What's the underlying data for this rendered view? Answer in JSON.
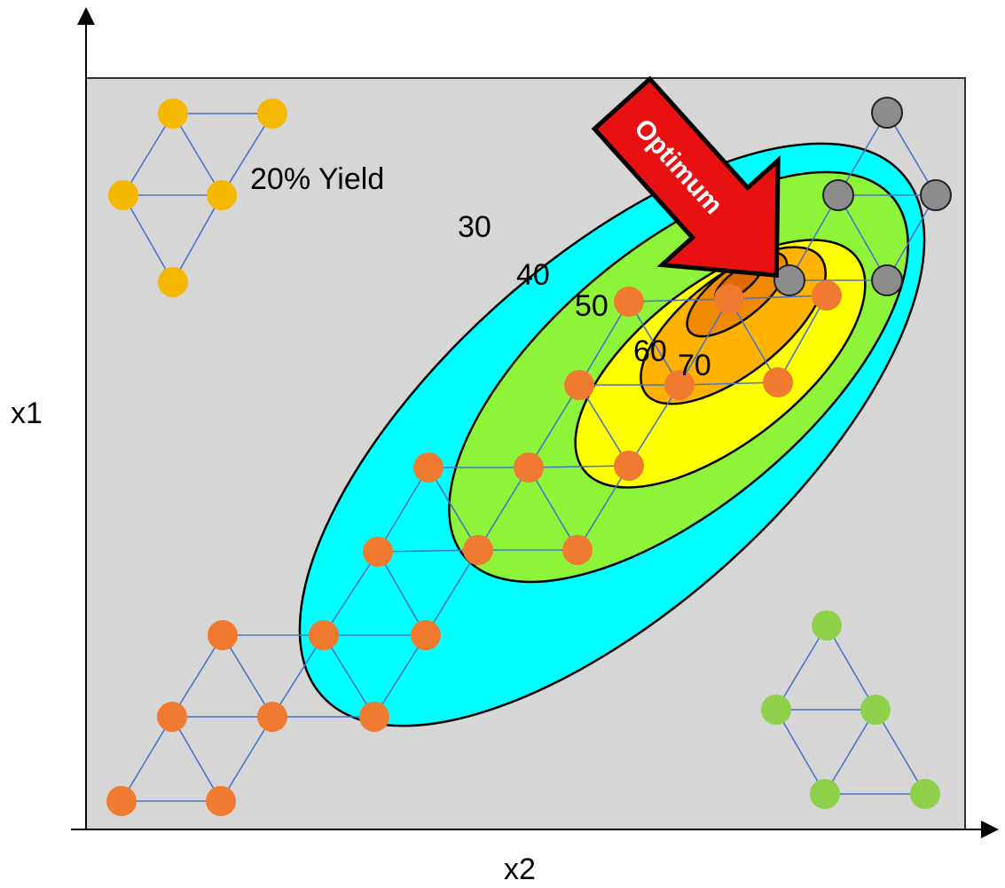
{
  "axes": {
    "vertical_label": "x1",
    "horizontal_label": "x2"
  },
  "annotations": {
    "start_yield": "20% Yield",
    "optimum": "Optimum"
  },
  "contour_labels": [
    "30",
    "40",
    "50",
    "60",
    "70"
  ]
}
